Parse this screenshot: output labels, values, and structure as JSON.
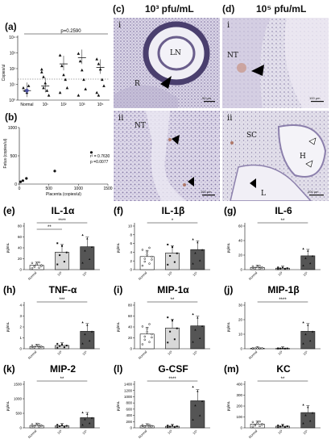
{
  "panels": {
    "a": {
      "label": "(a)",
      "p": "p=0.2590",
      "ylabel": "Copies/ul",
      "yticks": [
        "10⁴",
        "10³",
        "10²",
        "10¹",
        "10⁰"
      ],
      "xticks": [
        "Normal",
        "10¹",
        "10²",
        "10³",
        "10⁵"
      ]
    },
    "b": {
      "label": "(b)",
      "ylabel": "Fetus (copies/ul)",
      "xlabel": "Placenta (copies/ul)",
      "xticks": [
        "0",
        "500",
        "1000",
        "1500"
      ],
      "yticks": [
        "0",
        "500",
        "1000"
      ],
      "r2": "r² = 0.7630",
      "pval": "p =0.0077"
    },
    "c": {
      "label": "(c)",
      "title": "10³ pfu/mL"
    },
    "d": {
      "label": "(d)",
      "title": "10⁵ pfu/mL"
    },
    "histo": {
      "c_i": {
        "roman": "i",
        "labels": [
          "LN",
          "R"
        ],
        "scale": "50 μm"
      },
      "c_ii": {
        "roman": "ii",
        "labels": [
          "NT"
        ],
        "scale": "100 μm"
      },
      "d_i": {
        "roman": "i",
        "labels": [
          "NT"
        ],
        "scale": "100 μm"
      },
      "d_ii": {
        "roman": "ii",
        "labels": [
          "SC",
          "H",
          "L"
        ],
        "scale": "200 μm"
      }
    }
  },
  "bar_panels": [
    {
      "key": "e",
      "label": "(e)",
      "title": "IL-1α",
      "unit": "pg/mL",
      "sig": [
        "**",
        "****"
      ],
      "yticks": [
        "0",
        "20",
        "40",
        "60",
        "80"
      ]
    },
    {
      "key": "f",
      "label": "(f)",
      "title": "IL-1β",
      "unit": "pg/mL",
      "sig": [
        "*"
      ],
      "yticks": [
        "0",
        "2",
        "4",
        "6",
        "8",
        "10"
      ]
    },
    {
      "key": "g",
      "label": "(g)",
      "title": "IL-6",
      "unit": "pg/mL",
      "sig": [
        "**"
      ],
      "yticks": [
        "0",
        "20",
        "40",
        "60"
      ]
    },
    {
      "key": "h",
      "label": "(h)",
      "title": "TNF-α",
      "unit": "pg/mL",
      "sig": [
        "***"
      ],
      "yticks": [
        "0",
        "1",
        "2",
        "3",
        "4"
      ]
    },
    {
      "key": "i",
      "label": "(i)",
      "title": "MIP-1α",
      "unit": "pg/mL",
      "sig": [
        "**"
      ],
      "yticks": [
        "0",
        "20",
        "40",
        "60",
        "80"
      ]
    },
    {
      "key": "j",
      "label": "(j)",
      "title": "MIP-1β",
      "unit": "pg/mL",
      "sig": [
        "****"
      ],
      "yticks": [
        "0",
        "10",
        "20",
        "30"
      ]
    },
    {
      "key": "k",
      "label": "(k)",
      "title": "MIP-2",
      "unit": "pg/mL",
      "sig": [
        "**"
      ],
      "yticks": [
        "0",
        "500",
        "1000",
        "1500"
      ]
    },
    {
      "key": "l",
      "label": "(l)",
      "title": "G-CSF",
      "unit": "pg/mL",
      "sig": [
        "****"
      ],
      "yticks": [
        "0",
        "200",
        "400",
        "600",
        "800",
        "1000",
        "1200",
        "1400"
      ]
    },
    {
      "key": "m",
      "label": "(m)",
      "title": "KC",
      "unit": "pg/mL",
      "sig": [
        "**"
      ],
      "yticks": [
        "0",
        "100",
        "200",
        "300",
        "400"
      ]
    }
  ],
  "group_labels": [
    "Normal",
    "10³",
    "10⁵"
  ],
  "chart_data": [
    {
      "type": "scatter",
      "panel": "a",
      "categories": [
        "Normal",
        "10¹",
        "10²",
        "10³",
        "10⁵"
      ],
      "log_y": true,
      "ylim": [
        1,
        10000
      ],
      "series": [
        {
          "values": [
            [
              6,
              4,
              3,
              8
            ],
            [
              60,
              30,
              12,
              4,
              2,
              90,
              6
            ],
            [
              700,
              150,
              40,
              20,
              6,
              3
            ],
            [
              900,
              300,
              80,
              20,
              5,
              2
            ],
            [
              400,
              200,
              90,
              20,
              8,
              3,
              2
            ]
          ]
        },
        {
          "values": [
            [
              4
            ],
            [
              8
            ],
            [
              200
            ],
            [
              500
            ],
            [
              120
            ]
          ]
        }
      ]
    },
    {
      "type": "scatter",
      "panel": "b",
      "xlabel": "Placenta (copies/ul)",
      "ylabel": "Fetus (copies/ul)",
      "xlim": [
        0,
        1500
      ],
      "ylim": [
        0,
        1000
      ],
      "x": [
        20,
        60,
        120,
        600,
        1220
      ],
      "y": [
        40,
        60,
        100,
        230,
        560
      ]
    },
    {
      "type": "bar",
      "panel": "e",
      "categories": [
        "Normal",
        "10³",
        "10⁵"
      ],
      "values": [
        8,
        32,
        42
      ]
    },
    {
      "type": "bar",
      "panel": "f",
      "categories": [
        "Normal",
        "10³",
        "10⁵"
      ],
      "values": [
        3.0,
        3.8,
        4.6
      ]
    },
    {
      "type": "bar",
      "panel": "g",
      "categories": [
        "Normal",
        "10³",
        "10⁵"
      ],
      "values": [
        3,
        2,
        19
      ]
    },
    {
      "type": "bar",
      "panel": "h",
      "categories": [
        "Normal",
        "10³",
        "10⁵"
      ],
      "values": [
        0.2,
        0.3,
        1.6
      ]
    },
    {
      "type": "bar",
      "panel": "i",
      "categories": [
        "Normal",
        "10³",
        "10⁵"
      ],
      "values": [
        27,
        38,
        42
      ]
    },
    {
      "type": "bar",
      "panel": "j",
      "categories": [
        "Normal",
        "10³",
        "10⁵"
      ],
      "values": [
        0.3,
        0.2,
        12
      ]
    },
    {
      "type": "bar",
      "panel": "k",
      "categories": [
        "Normal",
        "10³",
        "10⁵"
      ],
      "values": [
        80,
        70,
        350
      ]
    },
    {
      "type": "bar",
      "panel": "l",
      "categories": [
        "Normal",
        "10³",
        "10⁵"
      ],
      "values": [
        60,
        50,
        870
      ]
    },
    {
      "type": "bar",
      "panel": "m",
      "categories": [
        "Normal",
        "10³",
        "10⁵"
      ],
      "values": [
        35,
        15,
        140
      ]
    }
  ]
}
